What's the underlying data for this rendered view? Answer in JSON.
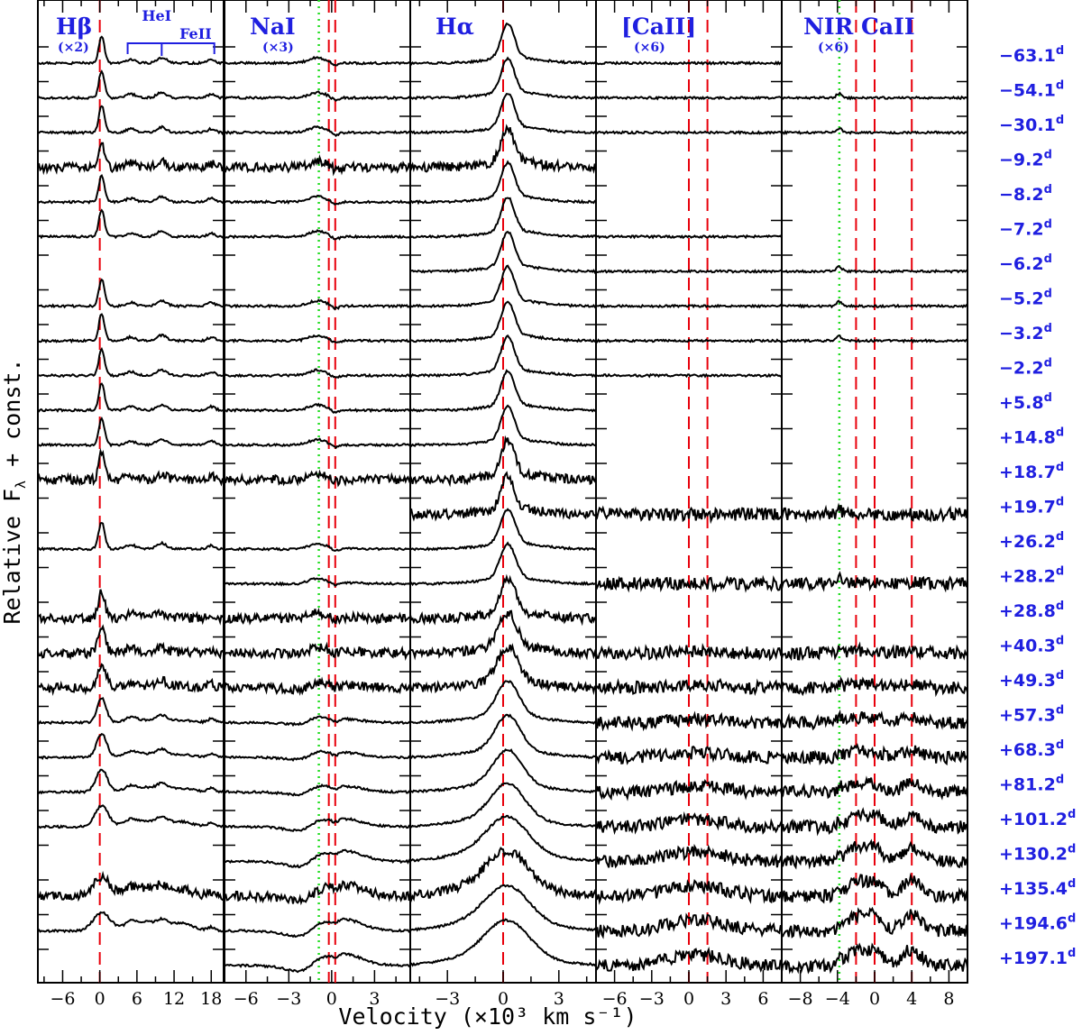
{
  "chart_data": {
    "type": "line",
    "xlabel": "Velocity (×10³ km s⁻¹)",
    "ylabel": "Relative F",
    "ylabel_sub": "λ",
    "ylabel_tail": " + const.",
    "epoch_unit": "d",
    "epochs": [
      "-63.1",
      "-54.1",
      "-30.1",
      "-9.2",
      "-8.2",
      "-7.2",
      "-6.2",
      "-5.2",
      "-3.2",
      "-2.2",
      "+5.8",
      "+14.8",
      "+18.7",
      "+19.7",
      "+26.2",
      "+28.2",
      "+28.8",
      "+40.3",
      "+49.3",
      "+57.3",
      "+68.3",
      "+81.2",
      "+101.2",
      "+130.2",
      "+135.4",
      "+194.6",
      "+197.1"
    ],
    "panels": [
      {
        "name": "Hβ",
        "scale_label": "(×2)",
        "xlim": [
          -10,
          20
        ],
        "xticks": [
          -6,
          0,
          6,
          12,
          18
        ],
        "xtick_labels": [
          "−6",
          "0",
          "6",
          "12",
          "18"
        ],
        "red_lines": [
          0
        ],
        "green_lines": [],
        "annotations": [
          {
            "label": "HeI",
            "x": 10
          },
          {
            "label": "FeII",
            "bracket": [
              4.5,
              18.5
            ],
            "x": 12
          }
        ],
        "spectra_epochs": [
          "-63.1",
          "-54.1",
          "-30.1",
          "-9.2",
          "-8.2",
          "-7.2",
          "-5.2",
          "-3.2",
          "-2.2",
          "+5.8",
          "+14.8",
          "+18.7",
          "+26.2",
          "+28.8",
          "+40.3",
          "+49.3",
          "+57.3",
          "+68.3",
          "+81.2",
          "+101.2",
          "+135.4",
          "+194.6"
        ]
      },
      {
        "name": "NaI",
        "scale_label": "(×3)",
        "xlim": [
          -7.5,
          5.5
        ],
        "xticks": [
          -6,
          -3,
          0,
          3
        ],
        "xtick_labels": [
          "−6",
          "−3",
          "0",
          "3"
        ],
        "red_lines": [
          -0.2,
          0.25
        ],
        "green_lines": [
          -0.9
        ],
        "spectra_epochs": [
          "-63.1",
          "-54.1",
          "-30.1",
          "-9.2",
          "-8.2",
          "-7.2",
          "-5.2",
          "-3.2",
          "-2.2",
          "+5.8",
          "+14.8",
          "+18.7",
          "+26.2",
          "+28.2",
          "+28.8",
          "+40.3",
          "+49.3",
          "+57.3",
          "+68.3",
          "+81.2",
          "+101.2",
          "+130.2",
          "+135.4",
          "+194.6",
          "+197.1"
        ]
      },
      {
        "name": "Hα",
        "scale_label": "",
        "xlim": [
          -5,
          5
        ],
        "xticks": [
          -3,
          0,
          3
        ],
        "xtick_labels": [
          "−3",
          "0",
          "3"
        ],
        "red_lines": [
          0
        ],
        "green_lines": [],
        "spectra_epochs": [
          "-63.1",
          "-54.1",
          "-30.1",
          "-9.2",
          "-8.2",
          "-7.2",
          "-6.2",
          "-5.2",
          "-3.2",
          "-2.2",
          "+5.8",
          "+14.8",
          "+18.7",
          "+19.7",
          "+26.2",
          "+28.2",
          "+28.8",
          "+40.3",
          "+49.3",
          "+57.3",
          "+68.3",
          "+81.2",
          "+101.2",
          "+130.2",
          "+135.4",
          "+194.6",
          "+197.1"
        ]
      },
      {
        "name": "[CaII]",
        "scale_label": "(×6)",
        "xlim": [
          -7.5,
          7.5
        ],
        "xticks": [
          -6,
          -3,
          0,
          3,
          6
        ],
        "xtick_labels": [
          "−6",
          "−3",
          "0",
          "3",
          "6"
        ],
        "red_lines": [
          0,
          1.5
        ],
        "green_lines": [],
        "spectra_epochs": [
          "-63.1",
          "-54.1",
          "-30.1",
          "-7.2",
          "-6.2",
          "-5.2",
          "-3.2",
          "-2.2",
          "+19.7",
          "+28.2",
          "+40.3",
          "+49.3",
          "+57.3",
          "+68.3",
          "+81.2",
          "+101.2",
          "+130.2",
          "+135.4",
          "+194.6",
          "+197.1"
        ]
      },
      {
        "name": "NIR CaII",
        "scale_label": "(×6)",
        "xlim": [
          -10,
          10
        ],
        "xticks": [
          -8,
          -4,
          0,
          4,
          8
        ],
        "xtick_labels": [
          "−8",
          "−4",
          "0",
          "4",
          "8"
        ],
        "red_lines": [
          -2,
          0,
          4
        ],
        "green_lines": [
          -3.8
        ],
        "spectra_epochs": [
          "-54.1",
          "-30.1",
          "-6.2",
          "-5.2",
          "-3.2",
          "+19.7",
          "+28.2",
          "+40.3",
          "+49.3",
          "+57.3",
          "+68.3",
          "+81.2",
          "+101.2",
          "+130.2",
          "+135.4",
          "+194.6",
          "+197.1"
        ]
      }
    ],
    "colors": {
      "spectrum": "#000000",
      "rest_line": "#e8000b",
      "na_line": "#22dd22",
      "label": "#1f1fe0"
    }
  }
}
